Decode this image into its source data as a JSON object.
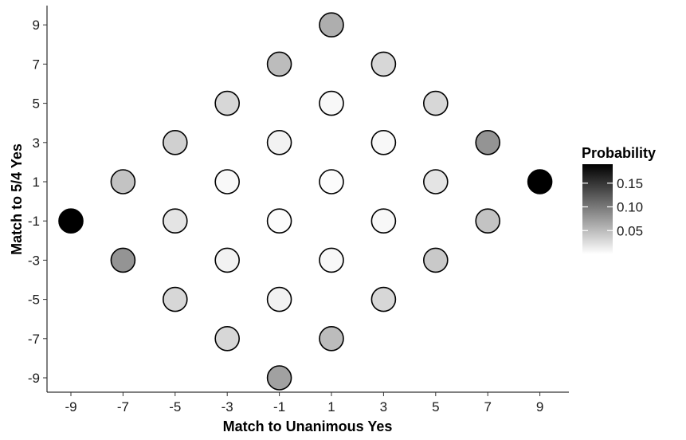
{
  "chart_data": {
    "type": "scatter",
    "title": "",
    "xlabel": "Match to Unanimous Yes",
    "ylabel": "Match to 5/4 Yes",
    "xlim": [
      -10,
      10
    ],
    "ylim": [
      -10,
      10
    ],
    "x_ticks": [
      "-9",
      "-7",
      "-5",
      "-3",
      "-1",
      "1",
      "3",
      "5",
      "7",
      "9"
    ],
    "y_ticks": [
      "-9",
      "-7",
      "-5",
      "-3",
      "-1",
      "1",
      "3",
      "5",
      "7",
      "9"
    ],
    "grid": false,
    "legend": {
      "title": "Probability",
      "position": "right",
      "range": [
        0,
        0.19
      ],
      "ticks": [
        "0.05",
        "0.10",
        "0.15"
      ],
      "tick_values": [
        0.05,
        0.1,
        0.15
      ],
      "color_low": "#ffffff",
      "color_high": "#000000"
    },
    "points": [
      {
        "x": 1,
        "y": 9,
        "p": 0.06
      },
      {
        "x": -1,
        "y": 7,
        "p": 0.05
      },
      {
        "x": 3,
        "y": 7,
        "p": 0.03
      },
      {
        "x": -3,
        "y": 5,
        "p": 0.03
      },
      {
        "x": 1,
        "y": 5,
        "p": 0.005
      },
      {
        "x": 5,
        "y": 5,
        "p": 0.03
      },
      {
        "x": -5,
        "y": 3,
        "p": 0.035
      },
      {
        "x": -1,
        "y": 3,
        "p": 0.01
      },
      {
        "x": 3,
        "y": 3,
        "p": 0.005
      },
      {
        "x": 7,
        "y": 3,
        "p": 0.08
      },
      {
        "x": -7,
        "y": 1,
        "p": 0.045
      },
      {
        "x": -3,
        "y": 1,
        "p": 0.005
      },
      {
        "x": 1,
        "y": 1,
        "p": 0.002
      },
      {
        "x": 5,
        "y": 1,
        "p": 0.02
      },
      {
        "x": 9,
        "y": 1,
        "p": 0.19
      },
      {
        "x": -9,
        "y": -1,
        "p": 0.19
      },
      {
        "x": -5,
        "y": -1,
        "p": 0.02
      },
      {
        "x": -1,
        "y": -1,
        "p": 0.002
      },
      {
        "x": 3,
        "y": -1,
        "p": 0.005
      },
      {
        "x": 7,
        "y": -1,
        "p": 0.045
      },
      {
        "x": -7,
        "y": -3,
        "p": 0.08
      },
      {
        "x": -3,
        "y": -3,
        "p": 0.01
      },
      {
        "x": 1,
        "y": -3,
        "p": 0.005
      },
      {
        "x": 5,
        "y": -3,
        "p": 0.04
      },
      {
        "x": -5,
        "y": -5,
        "p": 0.03
      },
      {
        "x": -1,
        "y": -5,
        "p": 0.01
      },
      {
        "x": 3,
        "y": -5,
        "p": 0.03
      },
      {
        "x": -3,
        "y": -7,
        "p": 0.03
      },
      {
        "x": 1,
        "y": -7,
        "p": 0.05
      },
      {
        "x": -1,
        "y": -9,
        "p": 0.07
      }
    ]
  }
}
